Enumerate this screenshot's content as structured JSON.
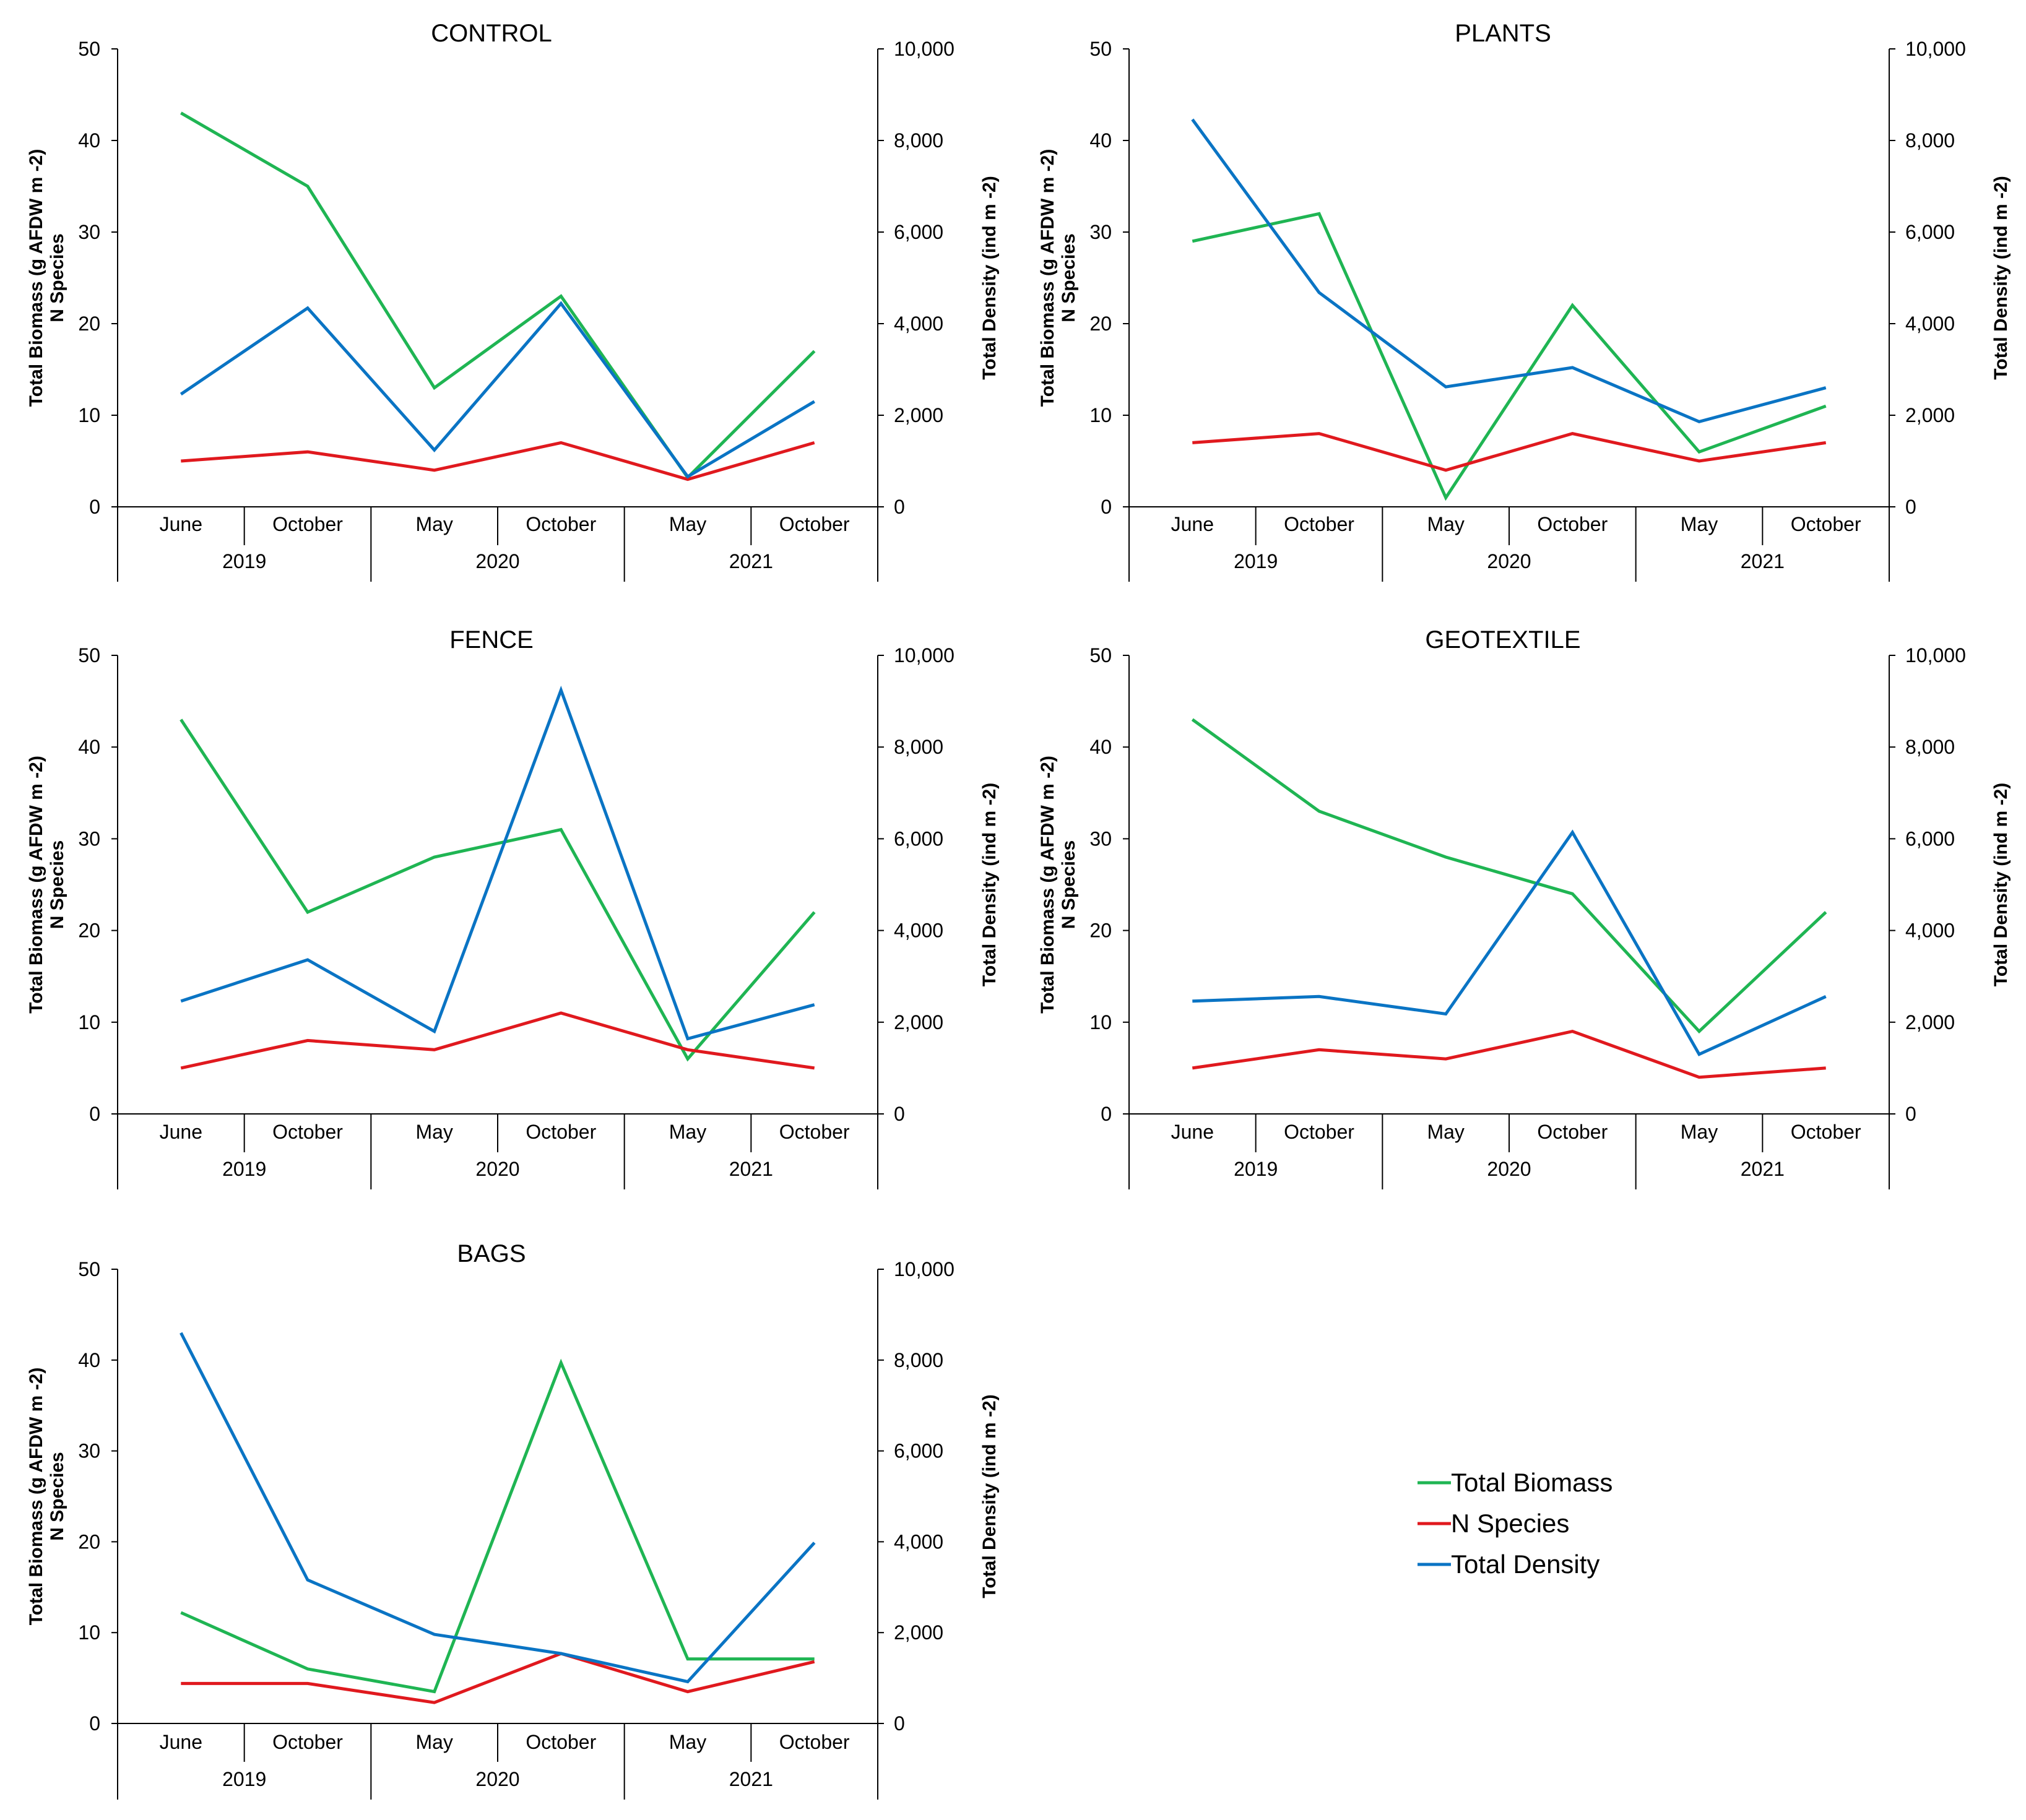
{
  "colors": {
    "biomass": "#1fb553",
    "species": "#e0191e",
    "density": "#0a74c4",
    "axis": "#000000"
  },
  "legend": [
    {
      "key": "biomass",
      "label": "Total Biomass"
    },
    {
      "key": "species",
      "label": "N Species"
    },
    {
      "key": "density",
      "label": "Total Density"
    }
  ],
  "chart_data": [
    {
      "type": "line",
      "title": "CONTROL",
      "categories": [
        "June",
        "October",
        "May",
        "October",
        "May",
        "October"
      ],
      "years": [
        "2019",
        "2020",
        "2021"
      ],
      "ylabel_left_line1": "Total Biomass (g AFDW m -2)",
      "ylabel_left_line2": "N Species",
      "ylabel_right": "Total Density (ind m -2)",
      "ylim_left": [
        0,
        50
      ],
      "ylim_right": [
        0,
        10000
      ],
      "yticks_left": [
        "0",
        "10",
        "20",
        "30",
        "40",
        "50"
      ],
      "yticks_right": [
        "0",
        "2,000",
        "4,000",
        "6,000",
        "8,000",
        "10,000"
      ],
      "series": [
        {
          "name": "Total Biomass",
          "key": "biomass",
          "axis": "left",
          "values": [
            43,
            35,
            13,
            23,
            3.2,
            17
          ]
        },
        {
          "name": "N Species",
          "key": "species",
          "axis": "left",
          "values": [
            5,
            6,
            4,
            7,
            3,
            7
          ]
        },
        {
          "name": "Total Density",
          "key": "density",
          "axis": "right",
          "values": [
            2460,
            4340,
            1240,
            4440,
            660,
            2300
          ]
        }
      ]
    },
    {
      "type": "line",
      "title": "PLANTS",
      "categories": [
        "June",
        "October",
        "May",
        "October",
        "May",
        "October"
      ],
      "years": [
        "2019",
        "2020",
        "2021"
      ],
      "ylabel_left_line1": "Total Biomass (g AFDW m -2)",
      "ylabel_left_line2": "N Species",
      "ylabel_right": "Total Density (ind m -2)",
      "ylim_left": [
        0,
        50
      ],
      "ylim_right": [
        0,
        10000
      ],
      "yticks_left": [
        "0",
        "10",
        "20",
        "30",
        "40",
        "50"
      ],
      "yticks_right": [
        "0",
        "2,000",
        "4,000",
        "6,000",
        "8,000",
        "10,000"
      ],
      "series": [
        {
          "name": "Total Biomass",
          "key": "biomass",
          "axis": "left",
          "values": [
            29,
            32,
            1,
            22,
            6,
            11
          ]
        },
        {
          "name": "N Species",
          "key": "species",
          "axis": "left",
          "values": [
            7,
            8,
            4,
            8,
            5,
            7
          ]
        },
        {
          "name": "Total Density",
          "key": "density",
          "axis": "right",
          "values": [
            8460,
            4680,
            2620,
            3040,
            1860,
            2600
          ]
        }
      ]
    },
    {
      "type": "line",
      "title": "FENCE",
      "categories": [
        "June",
        "October",
        "May",
        "October",
        "May",
        "October"
      ],
      "years": [
        "2019",
        "2020",
        "2021"
      ],
      "ylabel_left_line1": "Total Biomass (g AFDW m -2)",
      "ylabel_left_line2": "N Species",
      "ylabel_right": "Total Density (ind m -2)",
      "ylim_left": [
        0,
        50
      ],
      "ylim_right": [
        0,
        10000
      ],
      "yticks_left": [
        "0",
        "10",
        "20",
        "30",
        "40",
        "50"
      ],
      "yticks_right": [
        "0",
        "2,000",
        "4,000",
        "6,000",
        "8,000",
        "10,000"
      ],
      "series": [
        {
          "name": "Total Biomass",
          "key": "biomass",
          "axis": "left",
          "values": [
            43,
            22,
            28,
            31,
            6,
            22
          ]
        },
        {
          "name": "N Species",
          "key": "species",
          "axis": "left",
          "values": [
            5,
            8,
            7,
            11,
            7,
            5
          ]
        },
        {
          "name": "Total Density",
          "key": "density",
          "axis": "right",
          "values": [
            2460,
            3360,
            1800,
            9240,
            1640,
            2380
          ]
        }
      ]
    },
    {
      "type": "line",
      "title": "GEOTEXTILE",
      "categories": [
        "June",
        "October",
        "May",
        "October",
        "May",
        "October"
      ],
      "years": [
        "2019",
        "2020",
        "2021"
      ],
      "ylabel_left_line1": "Total Biomass (g AFDW m -2)",
      "ylabel_left_line2": "N Species",
      "ylabel_right": "Total Density (ind m -2)",
      "ylim_left": [
        0,
        50
      ],
      "ylim_right": [
        0,
        10000
      ],
      "yticks_left": [
        "0",
        "10",
        "20",
        "30",
        "40",
        "50"
      ],
      "yticks_right": [
        "0",
        "2,000",
        "4,000",
        "6,000",
        "8,000",
        "10,000"
      ],
      "series": [
        {
          "name": "Total Biomass",
          "key": "biomass",
          "axis": "left",
          "values": [
            43,
            33,
            28,
            24,
            9,
            22
          ]
        },
        {
          "name": "N Species",
          "key": "species",
          "axis": "left",
          "values": [
            5,
            7,
            6,
            9,
            4,
            5
          ]
        },
        {
          "name": "Total Density",
          "key": "density",
          "axis": "right",
          "values": [
            2460,
            2560,
            2180,
            6140,
            1300,
            2560
          ]
        }
      ]
    },
    {
      "type": "line",
      "title": "BAGS",
      "categories": [
        "June",
        "October",
        "May",
        "October",
        "May",
        "October"
      ],
      "years": [
        "2019",
        "2020",
        "2021"
      ],
      "ylabel_left_line1": "Total Biomass (g AFDW m -2)",
      "ylabel_left_line2": "N Species",
      "ylabel_right": "Total Density (ind m -2)",
      "ylim_left": [
        0,
        50
      ],
      "ylim_right": [
        0,
        10000
      ],
      "yticks_left": [
        "0",
        "10",
        "20",
        "30",
        "40",
        "50"
      ],
      "yticks_right": [
        "0",
        "2,000",
        "4,000",
        "6,000",
        "8,000",
        "10,000"
      ],
      "series": [
        {
          "name": "Total Biomass",
          "key": "biomass",
          "axis": "left",
          "values": [
            12.2,
            6,
            3.5,
            39.7,
            7.1,
            7.1
          ]
        },
        {
          "name": "N Species",
          "key": "species",
          "axis": "left",
          "values": [
            4.4,
            4.4,
            2.3,
            7.7,
            3.5,
            6.8
          ]
        },
        {
          "name": "Total Density",
          "key": "density",
          "axis": "right",
          "values": [
            8600,
            3160,
            1960,
            1540,
            920,
            3980
          ]
        }
      ]
    }
  ]
}
